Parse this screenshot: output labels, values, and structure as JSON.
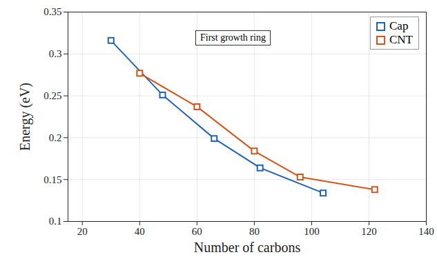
{
  "chart_data": {
    "type": "line",
    "xlabel": "Number of carbons",
    "ylabel": "Energy (eV)",
    "annotations": [
      "First growth ring"
    ],
    "xlim": [
      15,
      140
    ],
    "xticks": [
      20,
      40,
      60,
      80,
      100,
      120,
      140
    ],
    "ylim": [
      0.1,
      0.35
    ],
    "yticks": [
      0.1,
      0.15,
      0.2,
      0.25,
      0.3,
      0.35
    ],
    "grid": true,
    "legend": "top right",
    "series": [
      {
        "name": "Cap",
        "color": "#1f63b5",
        "marker": "square",
        "line_style": "solid",
        "x": [
          30,
          48,
          66,
          82,
          104
        ],
        "values": [
          0.316,
          0.251,
          0.199,
          0.164,
          0.134
        ]
      },
      {
        "name": "CNT",
        "color": "#d4541a",
        "marker": "square",
        "line_style": "solid",
        "x": [
          40,
          60,
          80,
          96,
          122
        ],
        "values": [
          0.277,
          0.237,
          0.184,
          0.153,
          0.138
        ]
      }
    ]
  }
}
